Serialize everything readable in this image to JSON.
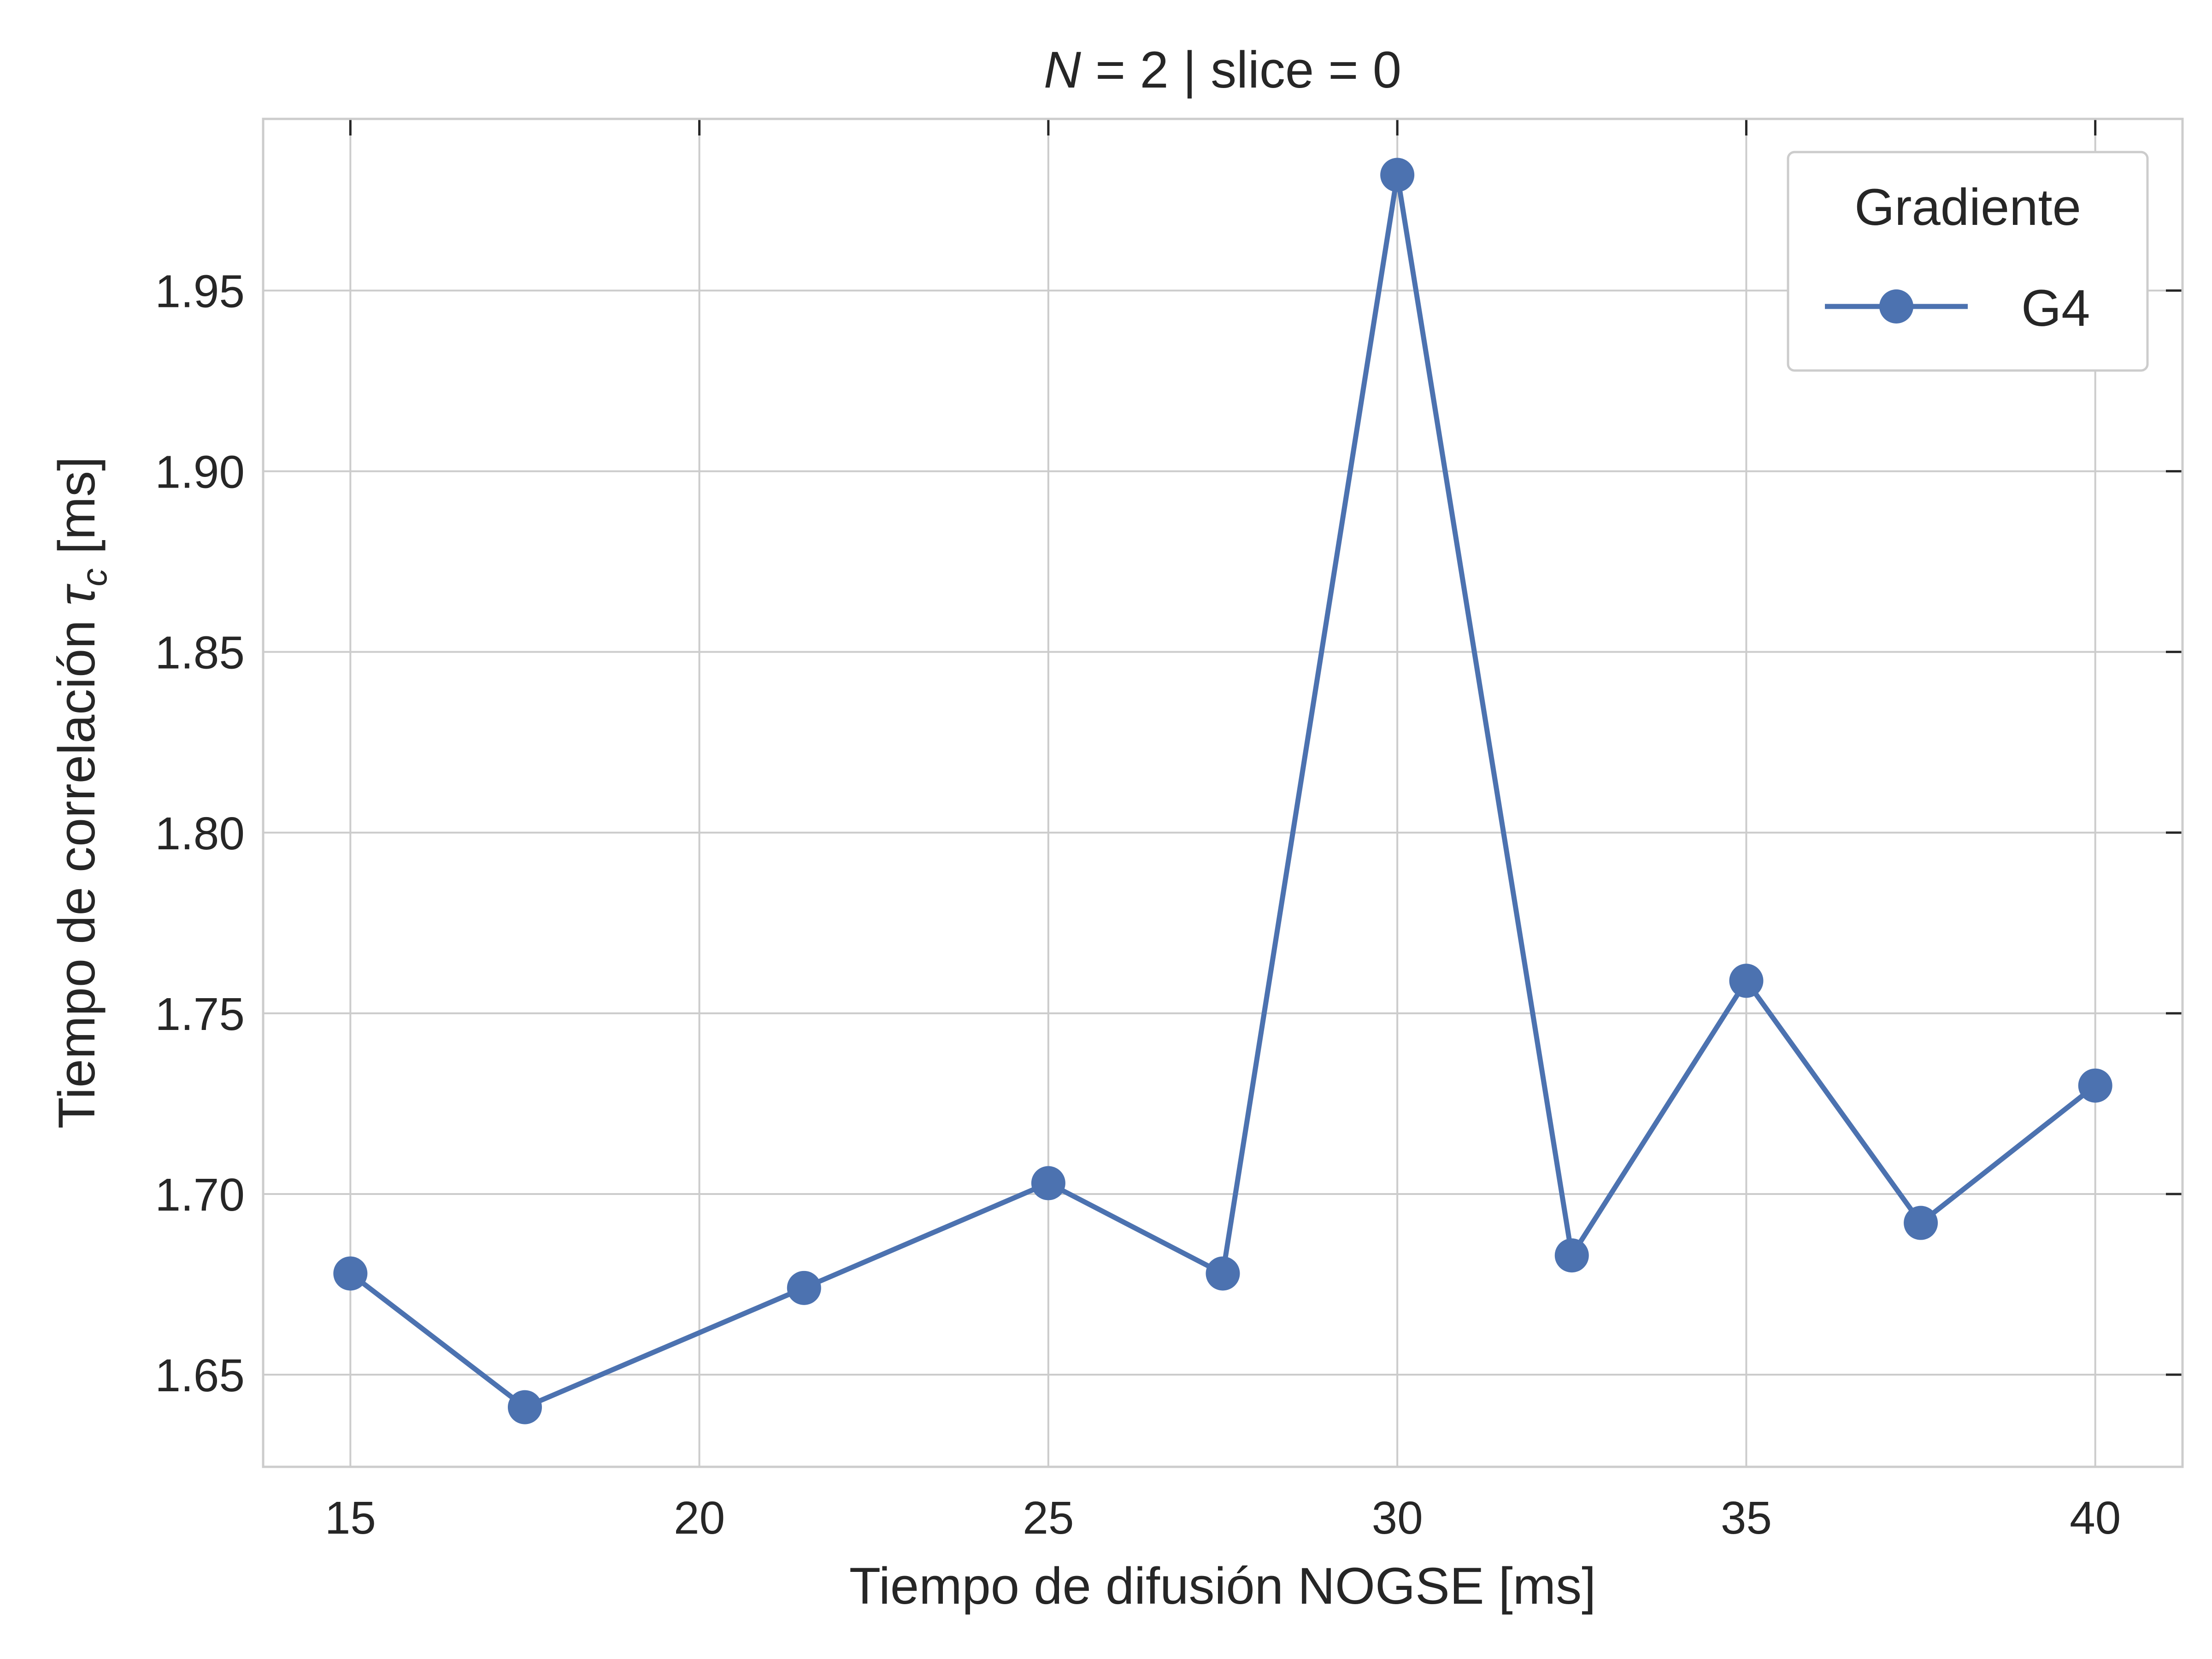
{
  "chart_data": {
    "type": "line",
    "title_prefix": "N",
    "title_rest": " = 2 | slice = 0",
    "xlabel": "Tiempo de difusión NOGSE [ms]",
    "ylabel_prefix": "Tiempo de correlación ",
    "ylabel_symbol": "τ",
    "ylabel_subscript": "c",
    "ylabel_suffix": " [ms]",
    "xlim": [
      13.75,
      41.25
    ],
    "ylim": [
      1.6245,
      1.9975
    ],
    "xticks": [
      15,
      20,
      25,
      30,
      35,
      40
    ],
    "xtick_labels": [
      "15",
      "20",
      "25",
      "30",
      "35",
      "40"
    ],
    "yticks": [
      1.65,
      1.7,
      1.75,
      1.8,
      1.85,
      1.9,
      1.95
    ],
    "ytick_labels": [
      "1.65",
      "1.70",
      "1.75",
      "1.80",
      "1.85",
      "1.90",
      "1.95"
    ],
    "grid": true,
    "legend": {
      "title": "Gradiente",
      "placement": "top-right"
    },
    "series": [
      {
        "name": "G4",
        "color": "#4c72b0",
        "marker": "circle",
        "x": [
          15,
          17.5,
          21.5,
          25,
          27.5,
          30,
          32.5,
          35,
          37.5,
          40
        ],
        "y": [
          1.678,
          1.641,
          1.674,
          1.703,
          1.678,
          1.982,
          1.683,
          1.759,
          1.692,
          1.73
        ]
      }
    ]
  }
}
